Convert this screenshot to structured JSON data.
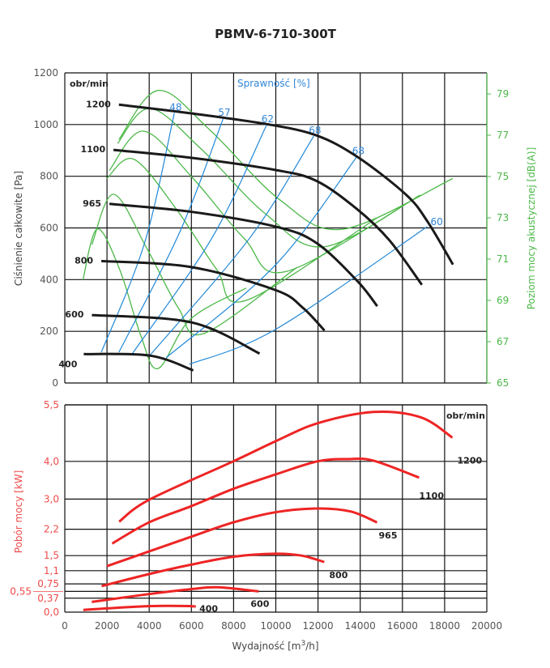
{
  "title": "PBMV-6-710-300T",
  "chart_data": [
    {
      "type": "line",
      "title": "PBMV-6-710-300T",
      "xlabel": "",
      "ylabel": "Ciśnienie całkowite [Pa]",
      "y2label": "Poziom mocy akustycznej [dB(A)]",
      "xlim": [
        0,
        20000
      ],
      "ylim": [
        0,
        1200
      ],
      "y2lim": [
        65,
        80
      ],
      "yticks": [
        0,
        200,
        400,
        600,
        800,
        1000,
        1200
      ],
      "y2ticks": [
        65,
        67,
        69,
        71,
        73,
        75,
        77,
        79
      ],
      "grid": true,
      "speed_unit_label": "obr/min",
      "efficiency_label": "Sprawność [%]",
      "pressure_curves": [
        {
          "name": "1200",
          "points": [
            [
              2564,
              1077
            ],
            [
              6026,
              1043
            ],
            [
              9615,
              1001
            ],
            [
              11923,
              958
            ],
            [
              13846,
              876
            ],
            [
              16154,
              730
            ],
            [
              17180,
              626
            ],
            [
              18397,
              458
            ]
          ]
        },
        {
          "name": "1100",
          "points": [
            [
              2308,
              902
            ],
            [
              6026,
              871
            ],
            [
              10000,
              824
            ],
            [
              11923,
              782
            ],
            [
              13846,
              673
            ],
            [
              15385,
              552
            ],
            [
              16923,
              380
            ]
          ]
        },
        {
          "name": "965",
          "points": [
            [
              2115,
              693
            ],
            [
              6026,
              662
            ],
            [
              10000,
              605
            ],
            [
              11923,
              542
            ],
            [
              13846,
              396
            ],
            [
              14808,
              297
            ]
          ]
        },
        {
          "name": "800",
          "points": [
            [
              1731,
              472
            ],
            [
              6026,
              448
            ],
            [
              10000,
              359
            ],
            [
              11282,
              291
            ],
            [
              12308,
              203
            ]
          ]
        },
        {
          "name": "600",
          "points": [
            [
              1282,
              263
            ],
            [
              6026,
              234
            ],
            [
              9231,
              114
            ]
          ]
        },
        {
          "name": "400",
          "points": [
            [
              897,
              112
            ],
            [
              4038,
              106
            ],
            [
              6090,
              49
            ]
          ]
        }
      ],
      "efficiency_lines": [
        {
          "name": "48",
          "points": [
            [
              1731,
              119
            ],
            [
              3782,
              542
            ],
            [
              5192,
              1045
            ]
          ]
        },
        {
          "name": "57",
          "points": [
            [
              2564,
              119
            ],
            [
              5449,
              584
            ],
            [
              7500,
              1022
            ]
          ]
        },
        {
          "name": "62",
          "points": [
            [
              3205,
              114
            ],
            [
              6987,
              563
            ],
            [
              9551,
              996
            ]
          ]
        },
        {
          "name": "68",
          "points": [
            [
              4013,
              105
            ],
            [
              8782,
              563
            ],
            [
              11795,
              955
            ]
          ]
        },
        {
          "name": "68",
          "points": [
            [
              4808,
              98
            ],
            [
              10000,
              458
            ],
            [
              13846,
              876
            ]
          ]
        },
        {
          "name": "60",
          "points": [
            [
              5897,
              72
            ],
            [
              10000,
              208
            ],
            [
              17180,
              605
            ]
          ]
        }
      ],
      "noise_curves_dBA": [
        {
          "speed": "1200",
          "points": [
            [
              2564,
              76.8
            ],
            [
              4423,
              79.17
            ],
            [
              6859,
              77.27
            ],
            [
              10192,
              73.87
            ],
            [
              13190,
              72.45
            ],
            [
              18385,
              74.9
            ]
          ]
        },
        {
          "speed": "1100",
          "points": [
            [
              2500,
              76.6
            ],
            [
              4038,
              78.3
            ],
            [
              6500,
              76.3
            ],
            [
              9500,
              73.2
            ],
            [
              12308,
              71.6
            ],
            [
              16846,
              74.1
            ]
          ]
        },
        {
          "speed": "965",
          "points": [
            [
              2115,
              75.3
            ],
            [
              3718,
              77.2
            ],
            [
              6000,
              75.0
            ],
            [
              8500,
              72.0
            ],
            [
              10500,
              70.4
            ],
            [
              16846,
              74.1
            ]
          ]
        },
        {
          "speed": "800",
          "points": [
            [
              1987,
              74.9
            ],
            [
              3269,
              75.84
            ],
            [
              5300,
              73.4
            ],
            [
              7200,
              70.5
            ],
            [
              8590,
              69.0
            ],
            [
              14808,
              73.0
            ]
          ]
        },
        {
          "speed": "600",
          "points": [
            [
              1282,
              71.7
            ],
            [
              2308,
              74.14
            ],
            [
              3900,
              71.5
            ],
            [
              5400,
              68.6
            ],
            [
              6603,
              67.4
            ],
            [
              11000,
              70.6
            ]
          ]
        },
        {
          "speed": "400",
          "points": [
            [
              859,
              70.0
            ],
            [
              1538,
              72.46
            ],
            [
              2600,
              70.5
            ],
            [
              3600,
              67.3
            ],
            [
              4423,
              65.7
            ],
            [
              5962,
              68.1
            ],
            [
              8600,
              69.6
            ]
          ]
        }
      ]
    },
    {
      "type": "line",
      "xlabel": "Wydajność [m³/h]",
      "xlabel_main": "Wydajność [m",
      "xlabel_sup": "3",
      "xlabel_end": "/h]",
      "ylabel": "Pobór mocy [kW]",
      "xlim": [
        0,
        20000
      ],
      "ylim": [
        0,
        5.5
      ],
      "xticks": [
        0,
        2000,
        4000,
        6000,
        8000,
        10000,
        12000,
        14000,
        16000,
        18000,
        20000
      ],
      "yticks": [
        0.0,
        0.37,
        0.55,
        0.75,
        1.1,
        1.5,
        2.2,
        3.0,
        4.0,
        5.5
      ],
      "ytick_labels": [
        "0,0",
        "0,37",
        "0,55",
        "0,75",
        "1,1",
        "1,5",
        "2,2",
        "3,0",
        "4,0",
        "5,5"
      ],
      "grid": true,
      "speed_unit_label": "obr/min",
      "series": [
        {
          "name": "1200",
          "points": [
            [
              2577,
              2.4
            ],
            [
              3990,
              2.98
            ],
            [
              7980,
              4.0
            ],
            [
              9975,
              4.53
            ],
            [
              11970,
              5.01
            ],
            [
              14630,
              5.31
            ],
            [
              16870,
              5.17
            ],
            [
              18370,
              4.63
            ]
          ]
        },
        {
          "name": "1100",
          "points": [
            [
              2244,
              1.82
            ],
            [
              3990,
              2.38
            ],
            [
              5985,
              2.81
            ],
            [
              7980,
              3.27
            ],
            [
              9975,
              3.65
            ],
            [
              11970,
              4.0
            ],
            [
              13380,
              4.06
            ],
            [
              14630,
              4.02
            ],
            [
              16790,
              3.57
            ]
          ]
        },
        {
          "name": "965",
          "points": [
            [
              1995,
              1.22
            ],
            [
              3990,
              1.61
            ],
            [
              5985,
              2.0
            ],
            [
              7980,
              2.38
            ],
            [
              9975,
              2.65
            ],
            [
              11970,
              2.75
            ],
            [
              13550,
              2.67
            ],
            [
              14800,
              2.38
            ]
          ]
        },
        {
          "name": "800",
          "points": [
            [
              1745,
              0.69
            ],
            [
              3990,
              1.01
            ],
            [
              5985,
              1.26
            ],
            [
              7980,
              1.47
            ],
            [
              9975,
              1.55
            ],
            [
              11220,
              1.5
            ],
            [
              12300,
              1.33
            ]
          ]
        },
        {
          "name": "600",
          "points": [
            [
              1280,
              0.27
            ],
            [
              3990,
              0.48
            ],
            [
              5985,
              0.61
            ],
            [
              7230,
              0.66
            ],
            [
              9190,
              0.55
            ]
          ]
        },
        {
          "name": "400",
          "points": [
            [
              880,
              0.06
            ],
            [
              3990,
              0.16
            ],
            [
              5985,
              0.16
            ],
            [
              6070,
              0.14
            ]
          ]
        }
      ]
    }
  ],
  "colors": {
    "pressure": "#1a1a1a",
    "efficiency": "#2088d8",
    "noise": "#4cb848",
    "power": "#ee2424",
    "grid": "#111111"
  }
}
